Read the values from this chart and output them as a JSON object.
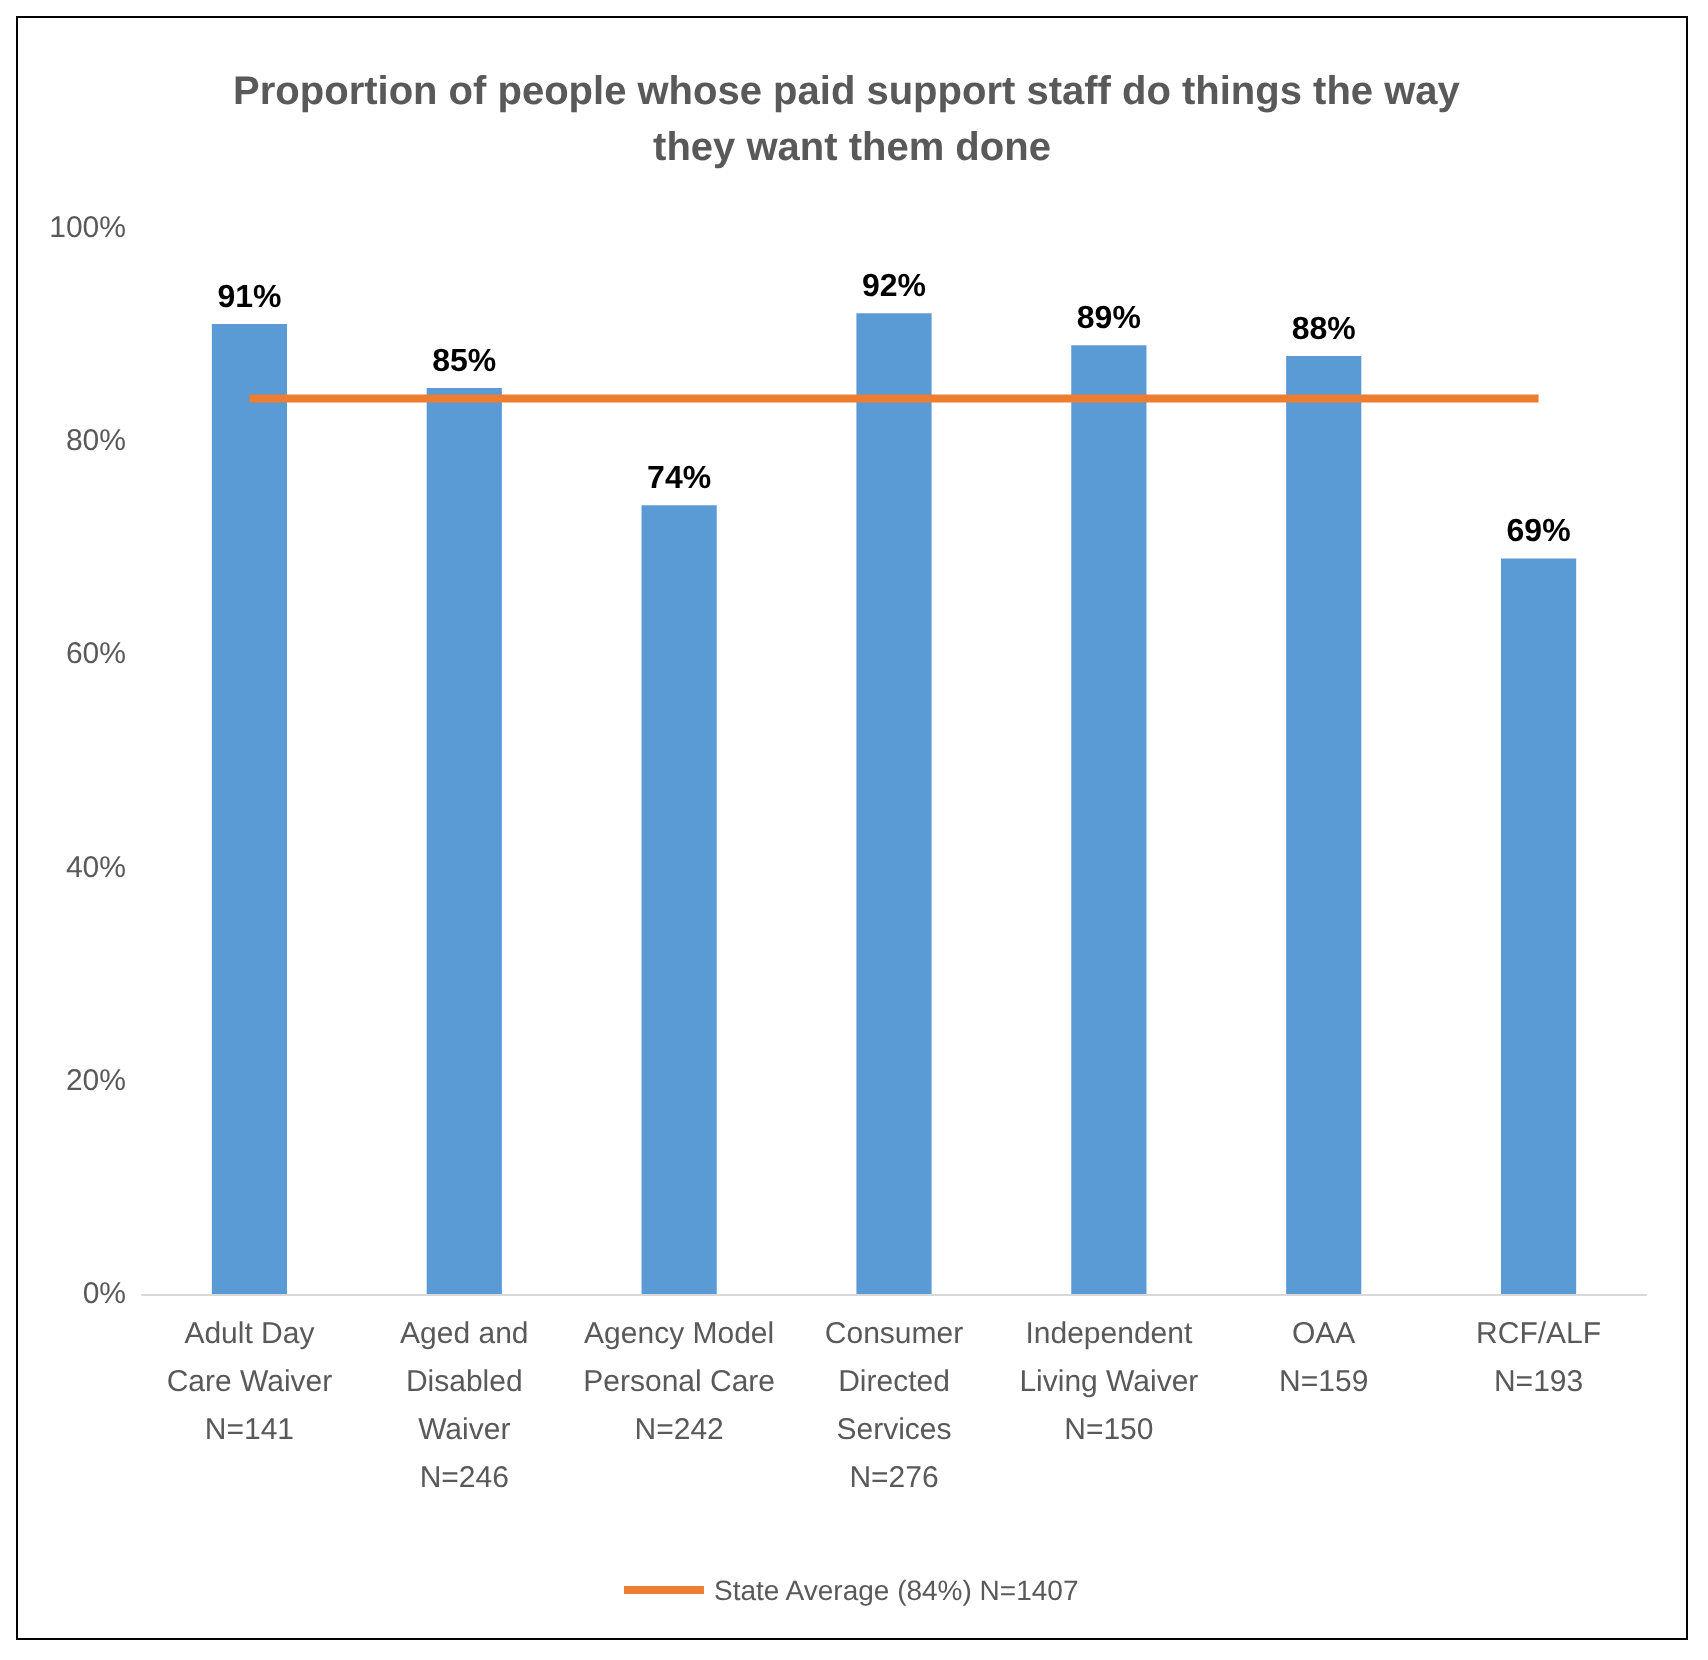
{
  "chart_data": {
    "type": "bar",
    "title": "Proportion of people whose paid support staff do things the way they want them done",
    "categories": [
      "Adult Day\nCare Waiver\nN=141",
      "Aged and\nDisabled\nWaiver\nN=246",
      "Agency Model\nPersonal Care\nN=242",
      "Consumer\nDirected\nServices\nN=276",
      "Independent\nLiving Waiver\nN=150",
      "OAA\nN=159",
      "RCF/ALF\nN=193"
    ],
    "series": [
      {
        "color": "#5b9bd5",
        "values": [
          91,
          85,
          74,
          92,
          89,
          88,
          69
        ],
        "value_labels": [
          "91%",
          "85%",
          "74%",
          "92%",
          "89%",
          "88%",
          "69%"
        ]
      },
      {
        "type": "line",
        "name": "State Average (84%) N=1407",
        "color": "#ed7d31",
        "values": [
          84,
          84,
          84,
          84,
          84,
          84,
          84
        ]
      }
    ],
    "ylim": [
      0,
      100
    ],
    "yticks": [
      {
        "value": 0,
        "label": "0%"
      },
      {
        "value": 20,
        "label": "20%"
      },
      {
        "value": 40,
        "label": "40%"
      },
      {
        "value": 60,
        "label": "60%"
      },
      {
        "value": 80,
        "label": "80%"
      },
      {
        "value": 100,
        "label": "100%"
      }
    ],
    "grid": false,
    "legend": "bottom",
    "marker": "none",
    "line_style": "solid"
  }
}
